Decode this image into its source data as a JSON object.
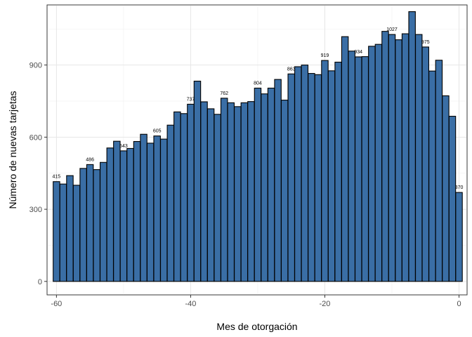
{
  "chart_data": {
    "type": "bar",
    "title": "",
    "xlabel": "Mes de otorgación",
    "ylabel": "Número de nuevas tarjetas",
    "xlim": [
      -61.4,
      1.2
    ],
    "ylim": [
      -56,
      1150
    ],
    "xticks": [
      -60,
      -40,
      -20,
      0
    ],
    "yticks": [
      0,
      300,
      600,
      900
    ],
    "grid": true,
    "legend": "none",
    "bar_fill": "#3a6ea5",
    "bar_stroke": "#000000",
    "x": [
      -60,
      -59,
      -58,
      -57,
      -56,
      -55,
      -54,
      -53,
      -52,
      -51,
      -50,
      -49,
      -48,
      -47,
      -46,
      -45,
      -44,
      -43,
      -42,
      -41,
      -40,
      -39,
      -38,
      -37,
      -36,
      -35,
      -34,
      -33,
      -32,
      -31,
      -30,
      -29,
      -28,
      -27,
      -26,
      -25,
      -24,
      -23,
      -22,
      -21,
      -20,
      -19,
      -18,
      -17,
      -16,
      -15,
      -14,
      -13,
      -12,
      -11,
      -10,
      -9,
      -8,
      -7,
      -6,
      -5,
      -4,
      -3,
      -2,
      -1,
      0
    ],
    "values": [
      415,
      405,
      440,
      400,
      470,
      486,
      465,
      495,
      555,
      583,
      543,
      553,
      582,
      612,
      575,
      605,
      592,
      650,
      705,
      698,
      737,
      833,
      747,
      718,
      695,
      762,
      743,
      727,
      743,
      748,
      804,
      780,
      804,
      840,
      754,
      863,
      893,
      900,
      865,
      860,
      919,
      876,
      912,
      1018,
      958,
      934,
      935,
      978,
      986,
      1040,
      1027,
      1005,
      1030,
      1122,
      1027,
      975,
      875,
      920,
      772,
      687,
      370
    ],
    "labeled": [
      {
        "x": -60,
        "label": "415"
      },
      {
        "x": -55,
        "label": "486"
      },
      {
        "x": -50,
        "label": "543"
      },
      {
        "x": -45,
        "label": "605"
      },
      {
        "x": -40,
        "label": "737"
      },
      {
        "x": -35,
        "label": "762"
      },
      {
        "x": -30,
        "label": "804"
      },
      {
        "x": -25,
        "label": "863"
      },
      {
        "x": -20,
        "label": "919"
      },
      {
        "x": -15,
        "label": "934"
      },
      {
        "x": -10,
        "label": "1027"
      },
      {
        "x": -5,
        "label": "975"
      },
      {
        "x": 0,
        "label": "370"
      }
    ]
  }
}
